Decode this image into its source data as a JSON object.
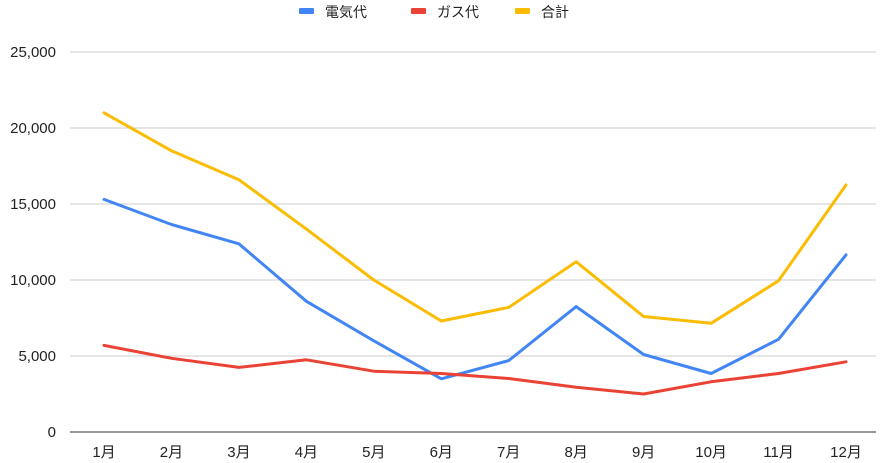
{
  "chart_data": {
    "type": "line",
    "title": "",
    "xlabel": "",
    "ylabel": "",
    "categories": [
      "1月",
      "2月",
      "3月",
      "4月",
      "5月",
      "6月",
      "7月",
      "8月",
      "9月",
      "10月",
      "11月",
      "12月"
    ],
    "series": [
      {
        "name": "電気代",
        "color": "#4285f4",
        "values": [
          15300,
          13650,
          12380,
          8600,
          6000,
          3500,
          4700,
          8250,
          5100,
          3850,
          6100,
          11650
        ]
      },
      {
        "name": "ガス代",
        "color": "#ea4335",
        "values": [
          5700,
          4850,
          4250,
          4750,
          4000,
          3850,
          3520,
          2950,
          2500,
          3300,
          3850,
          4620
        ]
      },
      {
        "name": "合計",
        "color": "#fbbc04",
        "values": [
          21000,
          18500,
          16600,
          13350,
          10000,
          7300,
          8200,
          11200,
          7600,
          7150,
          9950,
          16250
        ]
      }
    ],
    "yticks": [
      "0",
      "5,000",
      "10,000",
      "15,000",
      "20,000",
      "25,000"
    ],
    "ylim": [
      0,
      25000
    ],
    "grid": true,
    "legend_position": "top"
  }
}
